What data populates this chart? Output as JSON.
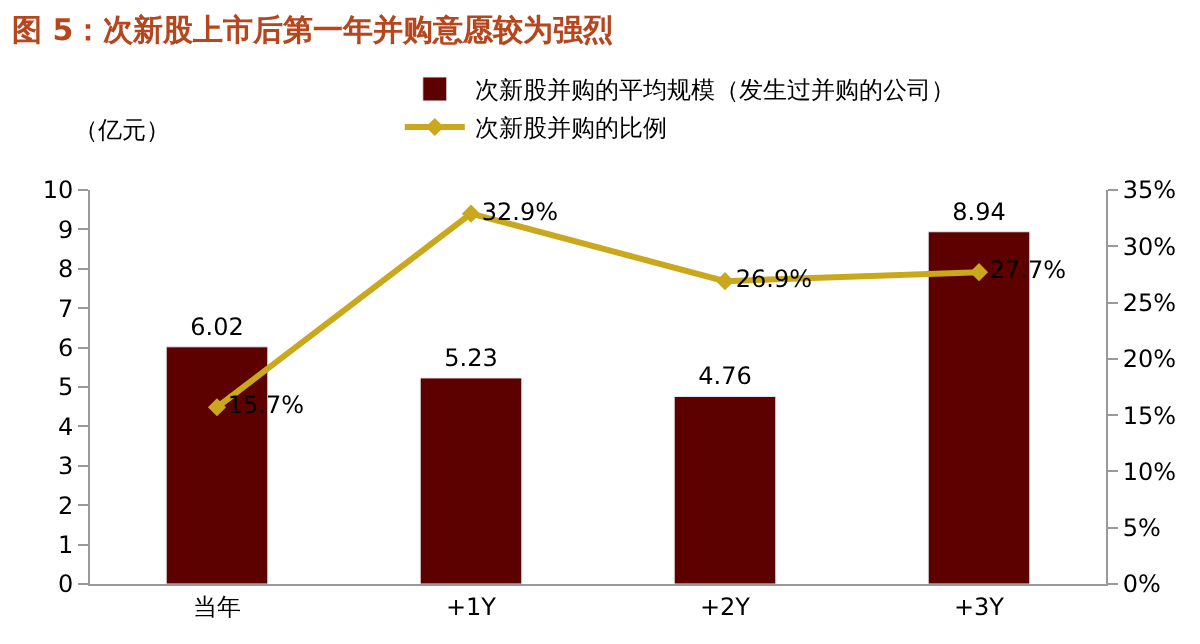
{
  "chart_data": {
    "type": "bar",
    "title": "图 5：次新股上市后第一年并购意愿较为强烈",
    "ylabel": "（亿元）",
    "categories": [
      "当年",
      "+1Y",
      "+2Y",
      "+3Y"
    ],
    "series": [
      {
        "name": "次新股并购的平均规模（发生过并购的公司）",
        "color": "#5c0000",
        "values": [
          6.02,
          5.23,
          4.76,
          8.94
        ],
        "value_labels": [
          "6.02",
          "5.23",
          "4.76",
          "8.94"
        ]
      },
      {
        "name": "次新股并购的比例",
        "type": "line",
        "axis": "y2",
        "color": "#c9a81e",
        "marker": "diamond",
        "values": [
          15.7,
          32.9,
          26.9,
          27.7
        ],
        "value_labels": [
          "15.7%",
          "32.9%",
          "26.9%",
          "27.7%"
        ]
      }
    ],
    "ylim": [
      0,
      10
    ],
    "yticks": [
      0,
      1,
      2,
      3,
      4,
      5,
      6,
      7,
      8,
      9,
      10
    ],
    "y2lim": [
      0,
      35
    ],
    "y2ticks": [
      {
        "value": 0,
        "label": "0%"
      },
      {
        "value": 5,
        "label": "5%"
      },
      {
        "value": 10,
        "label": "10%"
      },
      {
        "value": 15,
        "label": "15%"
      },
      {
        "value": 20,
        "label": "20%"
      },
      {
        "value": 25,
        "label": "25%"
      },
      {
        "value": 30,
        "label": "30%"
      },
      {
        "value": 35,
        "label": "35%"
      }
    ],
    "legend": "top"
  }
}
